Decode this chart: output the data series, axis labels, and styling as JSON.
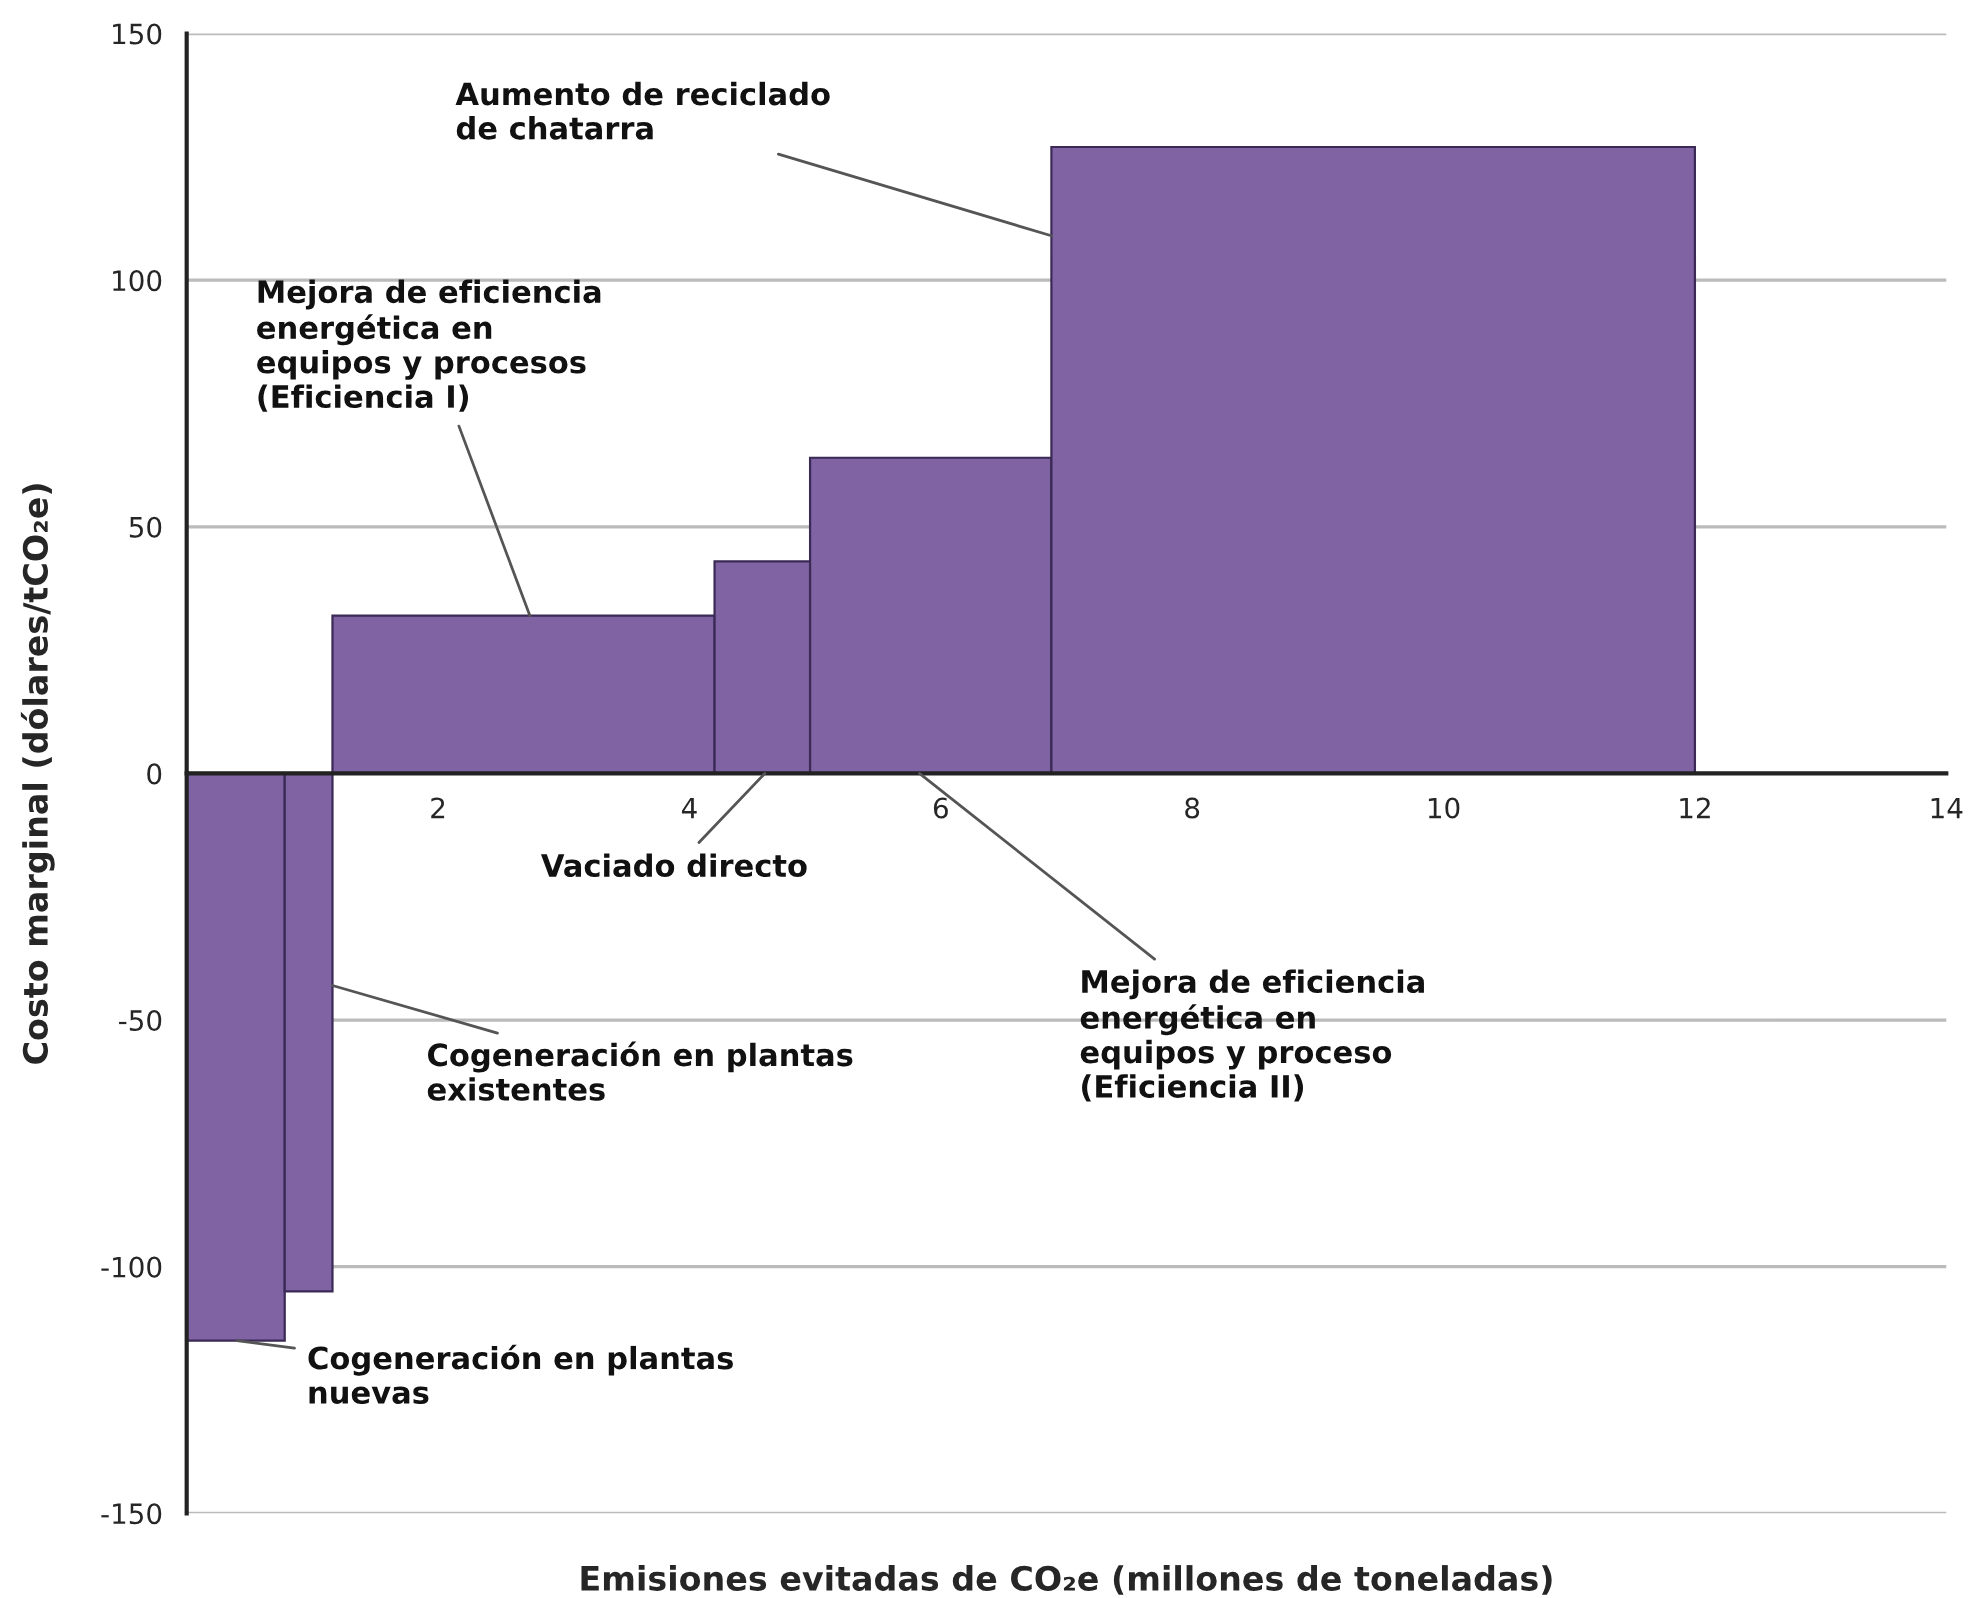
{
  "chart_data": {
    "type": "histogram",
    "bins": [
      0,
      0.78,
      1.16,
      4.2,
      4.96,
      6.88,
      12
    ],
    "values": [
      -115,
      -105,
      32,
      43,
      64,
      127
    ],
    "color": "#7f63a3",
    "xlabel": "Emisiones evitadas de CO₂e (millones de toneladas)",
    "ylabel": "Costo marginal (dólares/tCO₂e)",
    "xlim": [
      0,
      14
    ],
    "xticks": [
      2,
      4,
      6,
      8,
      10,
      12,
      14
    ],
    "ylim": [
      -150,
      150
    ],
    "yticks": [
      -150,
      -100,
      -50,
      0,
      50,
      100,
      150
    ],
    "grid": "y",
    "annotations": [
      {
        "text": "Aumento de reciclado\nde chatarra",
        "x": 6.88,
        "y": 109
      },
      {
        "text": "Mejora de eficiencia\nenergética en\nequipos y procesos\n(Eficiencia I)",
        "x": 2.73,
        "y": 32
      },
      {
        "text": "Vaciado directo",
        "x": 4.6,
        "y": 0
      },
      {
        "text": "Mejora de eficiencia\nenergética en\nequipos y proceso\n(Eficiencia II)",
        "x": 5.83,
        "y": 0
      },
      {
        "text": "Cogeneración en plantas\nexistentes",
        "x": 1.16,
        "y": -43
      },
      {
        "text": "Cogeneración en plantas\nnuevas",
        "x": 0.4,
        "y": -115
      }
    ]
  }
}
